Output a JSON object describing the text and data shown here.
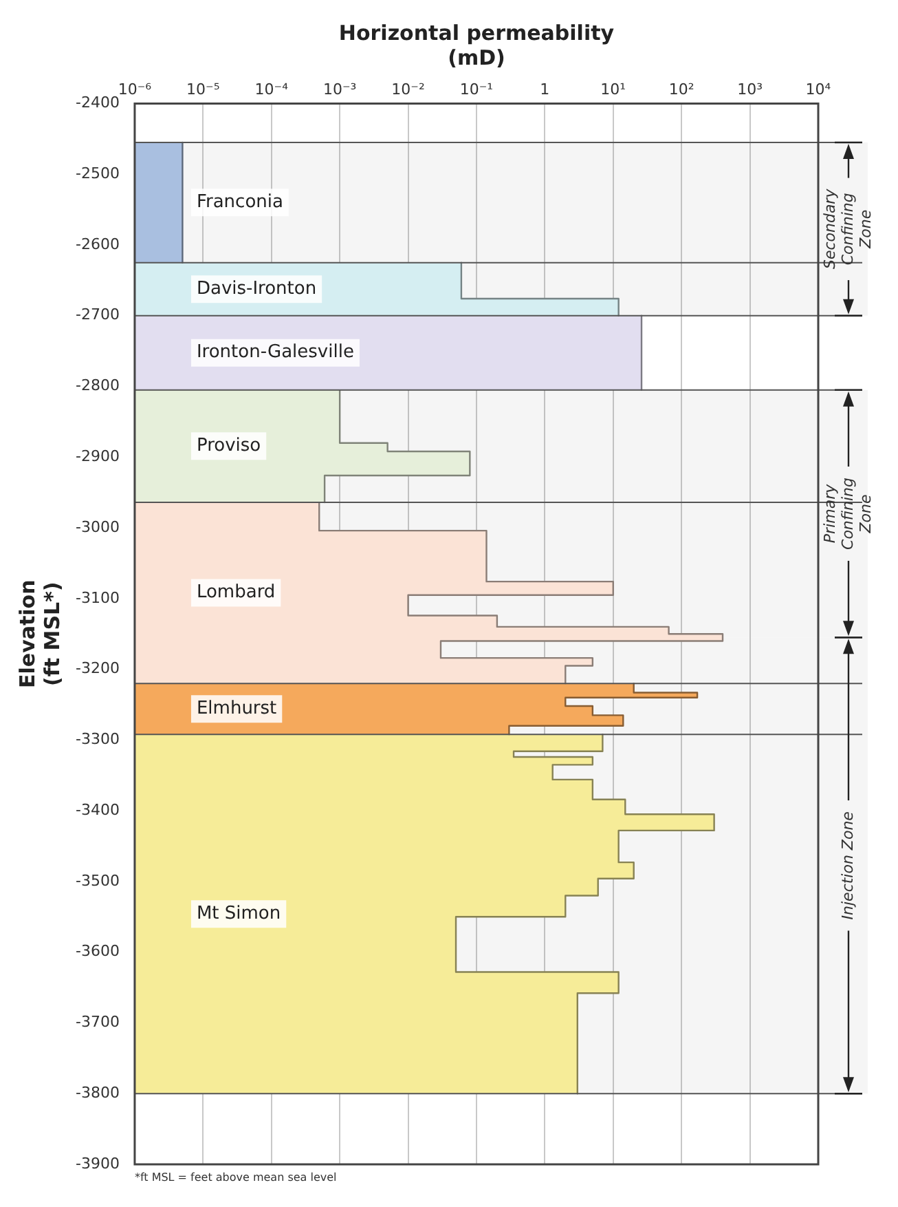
{
  "chart_data": {
    "type": "area",
    "orientation": "horizontal",
    "xlabel": "Horizontal permeability (mD)",
    "ylabel": "Elevation (ft MSL*)",
    "log": "x",
    "grid": "x",
    "legend": false,
    "xlim": [
      1e-06,
      10000
    ],
    "xticks": [
      {
        "value": 1e-06,
        "label": "10⁻⁶"
      },
      {
        "value": 1e-05,
        "label": "10⁻⁵"
      },
      {
        "value": 0.0001,
        "label": "10⁻⁴"
      },
      {
        "value": 0.001,
        "label": "10⁻³"
      },
      {
        "value": 0.01,
        "label": "10⁻²"
      },
      {
        "value": 0.1,
        "label": "10⁻¹"
      },
      1,
      {
        "value": 10,
        "label": "10¹"
      },
      {
        "value": 100,
        "label": "10²"
      },
      {
        "value": 1000,
        "label": "10³"
      },
      {
        "value": 10000,
        "label": "10⁴"
      }
    ],
    "ylim": [
      -3900,
      -2400
    ],
    "yticks": [
      -2400,
      -2500,
      -2600,
      -2700,
      -2800,
      -2900,
      -3000,
      -3100,
      -3200,
      -3300,
      -3400,
      -3500,
      -3600,
      -3700,
      -3800,
      -3900
    ],
    "series": [
      {
        "name": "Franconia",
        "color": "#a9bfe0",
        "x": [
          -2455,
          -2625
        ],
        "values": [
          5e-06,
          5e-06
        ]
      },
      {
        "name": "Davis-Ironton",
        "color": "#d5eef2",
        "x": [
          -2625,
          -2676,
          -2676,
          -2700
        ],
        "values": [
          0.06,
          0.06,
          12,
          12
        ]
      },
      {
        "name": "Ironton-Galesville",
        "color": "#e2def0",
        "x": [
          -2700,
          -2805
        ],
        "values": [
          26,
          26
        ]
      },
      {
        "name": "Proviso",
        "color": "#e6efda",
        "x": [
          -2805,
          -2880,
          -2880,
          -2892,
          -2892,
          -2926,
          -2926,
          -2964
        ],
        "values": [
          0.001,
          0.001,
          0.005,
          0.005,
          0.08,
          0.08,
          0.0006,
          0.0006
        ]
      },
      {
        "name": "Lombard",
        "color": "#fbe3d6",
        "x": [
          -2964,
          -3004,
          -3004,
          -3076,
          -3076,
          -3095,
          -3095,
          -3124,
          -3124,
          -3140,
          -3140,
          -3150,
          -3150,
          -3160,
          -3160,
          -3184,
          -3184,
          -3195,
          -3195,
          -3220
        ],
        "values": [
          0.0005,
          0.0005,
          0.14,
          0.14,
          10,
          10,
          0.01,
          0.01,
          0.2,
          0.2,
          65,
          65,
          400,
          400,
          0.03,
          0.03,
          5,
          5,
          2,
          2
        ]
      },
      {
        "name": "Elmhurst",
        "color": "#f5a95c",
        "x": [
          -3220,
          -3233,
          -3233,
          -3240,
          -3240,
          -3252,
          -3252,
          -3265,
          -3265,
          -3280,
          -3280,
          -3292
        ],
        "values": [
          20,
          20,
          170,
          170,
          2,
          2,
          5,
          5,
          14,
          14,
          0.3,
          0.3
        ]
      },
      {
        "name": "Mt Simon",
        "color": "#f6ec98",
        "x": [
          -3292,
          -3316,
          -3316,
          -3324,
          -3324,
          -3335,
          -3335,
          -3356,
          -3356,
          -3384,
          -3384,
          -3405,
          -3405,
          -3428,
          -3428,
          -3473,
          -3473,
          -3496,
          -3496,
          -3520,
          -3520,
          -3550,
          -3550,
          -3628,
          -3628,
          -3658,
          -3658,
          -3800
        ],
        "values": [
          7,
          7,
          0.35,
          0.35,
          5,
          5,
          1.3,
          1.3,
          5,
          5,
          15,
          15,
          300,
          300,
          12,
          12,
          20,
          20,
          6,
          6,
          2,
          2,
          0.05,
          0.05,
          12,
          12,
          3,
          3
        ]
      }
    ],
    "ref_lines": [
      {
        "axis": "y",
        "value": -2455
      },
      {
        "axis": "y",
        "value": -2625
      },
      {
        "axis": "y",
        "value": -2700
      },
      {
        "axis": "y",
        "value": -2805
      },
      {
        "axis": "y",
        "value": -2964
      },
      {
        "axis": "y",
        "value": -3220
      },
      {
        "axis": "y",
        "value": -3292
      },
      {
        "axis": "y",
        "value": -3800
      }
    ],
    "bands": [
      {
        "axis": "y",
        "from": -2455,
        "to": -2700,
        "label": "Secondary Confining Zone"
      },
      {
        "axis": "y",
        "from": -2805,
        "to": -3155,
        "label": "Primary Confining Zone"
      },
      {
        "axis": "y",
        "from": -3155,
        "to": -3800,
        "label": "Injection Zone"
      }
    ],
    "annotations": [
      "*ft MSL = feet above mean sea level"
    ]
  }
}
